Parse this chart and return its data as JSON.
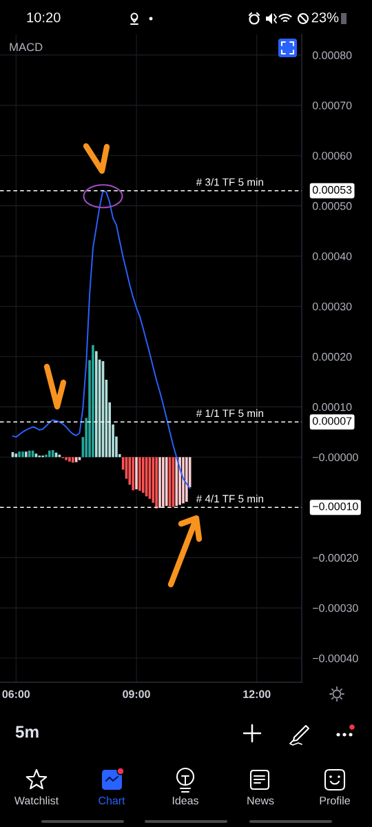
{
  "chart_data": {
    "type": "bar",
    "title": "MACD",
    "x": [
      5.917,
      6.0,
      6.083,
      6.167,
      6.25,
      6.333,
      6.417,
      6.5,
      6.583,
      6.667,
      6.75,
      6.833,
      6.917,
      7.0,
      7.083,
      7.167,
      7.25,
      7.333,
      7.417,
      7.5,
      7.583,
      7.667,
      7.75,
      7.833,
      7.917,
      8.0,
      8.083,
      8.167,
      8.25,
      8.333,
      8.417,
      8.5,
      8.583,
      8.667,
      8.75,
      8.833,
      8.917,
      9.0,
      9.083,
      9.167,
      9.25,
      9.333,
      9.417,
      9.5,
      9.583,
      9.667,
      9.75,
      9.833,
      9.917,
      10.0,
      10.083,
      10.167,
      10.25,
      10.333
    ],
    "series": [
      {
        "values": [
          1e-05,
          7e-06,
          1.1e-05,
          1.1e-05,
          1.1e-05,
          1.3e-05,
          1.3e-05,
          7e-06,
          3e-06,
          3e-06,
          5e-06,
          1.3e-05,
          1.4e-05,
          9e-06,
          5e-06,
          -2e-06,
          -6e-06,
          -9e-06,
          -1.1e-05,
          -1e-05,
          -6e-06,
          4e-05,
          7.8e-05,
          0.000193,
          0.000223,
          0.000211,
          0.000194,
          0.000191,
          0.000154,
          0.000109,
          6.5e-05,
          4.1e-05,
          6e-06,
          -2.5e-05,
          -4.3e-05,
          -5.5e-05,
          -6.6e-05,
          -6.4e-05,
          -6.7e-05,
          -7.1e-05,
          -7.8e-05,
          -8.3e-05,
          -9.1e-05,
          -0.000102,
          -0.000101,
          -9.9e-05,
          -9.7e-05,
          -9.8e-05,
          -9.9e-05,
          -9.7e-05,
          -9.5e-05,
          -9.2e-05,
          -8.9e-05,
          -6e-05
        ],
        "colors": [
          "#b2dfdb",
          "#b2dfdb",
          "#26a69a",
          "#26a69a",
          "#b2dfdb",
          "#26a69a",
          "#26a69a",
          "#b2dfdb",
          "#b2dfdb",
          "#b2dfdb",
          "#26a69a",
          "#26a69a",
          "#26a69a",
          "#b2dfdb",
          "#b2dfdb",
          "#ff5252",
          "#ff5252",
          "#ff5252",
          "#ff5252",
          "#ffcdd2",
          "#ffcdd2",
          "#26a69a",
          "#26a69a",
          "#26a69a",
          "#26a69a",
          "#b2dfdb",
          "#b2dfdb",
          "#b2dfdb",
          "#b2dfdb",
          "#b2dfdb",
          "#b2dfdb",
          "#b2dfdb",
          "#b2dfdb",
          "#ff5252",
          "#ff5252",
          "#ff5252",
          "#ff5252",
          "#ffcdd2",
          "#ff5252",
          "#ff5252",
          "#ff5252",
          "#ff5252",
          "#ff5252",
          "#ff5252",
          "#ffcdd2",
          "#ffcdd2",
          "#ffcdd2",
          "#ff5252",
          "#ff5252",
          "#ffcdd2",
          "#ffcdd2",
          "#ffcdd2",
          "#ffcdd2",
          "#ffcdd2"
        ]
      },
      {
        "type": "line",
        "color": "#2962ff",
        "values": [
          4.2e-05,
          4e-05,
          4.5e-05,
          5e-05,
          5.4e-05,
          5.7e-05,
          6e-05,
          5.8e-05,
          5.4e-05,
          5.6e-05,
          6.2e-05,
          6.9e-05,
          7.4e-05,
          7.2e-05,
          7e-05,
          6.6e-05,
          6e-05,
          5.2e-05,
          4.6e-05,
          4.3e-05,
          4.8e-05,
          9.8e-05,
          0.000187,
          0.000323,
          0.000416,
          0.000457,
          0.000498,
          0.00053,
          0.000527,
          0.000507,
          0.000475,
          0.000462,
          0.00043,
          0.000398,
          0.000371,
          0.000343,
          0.000318,
          0.000297,
          0.00028,
          0.000256,
          0.000231,
          0.000206,
          0.000179,
          0.000153,
          0.00013,
          0.000105,
          7.8e-05,
          5e-05,
          2.3e-05,
          0,
          -2.3e-05,
          -4.3e-05,
          -5.3e-05,
          -6.2e-05
        ]
      }
    ],
    "xlim": [
      5.6,
      13.12
    ],
    "xticks": [
      {
        "value": 6,
        "label": "06:00"
      },
      {
        "value": 9,
        "label": "09:00"
      },
      {
        "value": 12,
        "label": "12:00"
      }
    ],
    "ylim": [
      -0.000448,
      0.000841
    ],
    "yticks": [
      {
        "value": 0.0008,
        "label": "0.00080"
      },
      {
        "value": 0.0007,
        "label": "0.00070"
      },
      {
        "value": 0.0006,
        "label": "0.00060"
      },
      {
        "value": 0.0005,
        "label": "0.00050"
      },
      {
        "value": 0.0004,
        "label": "0.00040"
      },
      {
        "value": 0.0003,
        "label": "0.00030"
      },
      {
        "value": 0.0002,
        "label": "0.00020"
      },
      {
        "value": 0.0001,
        "label": "0.00010"
      },
      {
        "value": 0,
        "label": "−0.00000"
      },
      {
        "value": -0.0002,
        "label": "−0.00020"
      },
      {
        "value": -0.0003,
        "label": "−0.00030"
      },
      {
        "value": -0.0004,
        "label": "−0.00040"
      }
    ],
    "grid": true,
    "ref_lines": [
      {
        "axis": "y",
        "value": 0.00053,
        "label": "0.00053",
        "color": "#ffffff",
        "line_style": "dashed"
      },
      {
        "axis": "y",
        "value": 7e-05,
        "label": "0.00007",
        "color": "#ffffff",
        "line_style": "dashed"
      },
      {
        "axis": "y",
        "value": -0.0001,
        "label": "−0.00010",
        "color": "#ffffff",
        "line_style": "dashed"
      }
    ],
    "annotations": [
      "10:20",
      "23%",
      {
        "text": "# 3/1 TF 5 min",
        "y": 0.00053
      },
      {
        "text": "# 1/1 TF 5 min",
        "y": 7e-05
      },
      {
        "text": "# 4/1 TF 5 min",
        "y": -0.0001
      },
      "5m",
      "Watchlist",
      "Chart",
      "Ideas",
      "News",
      "Profile"
    ]
  }
}
